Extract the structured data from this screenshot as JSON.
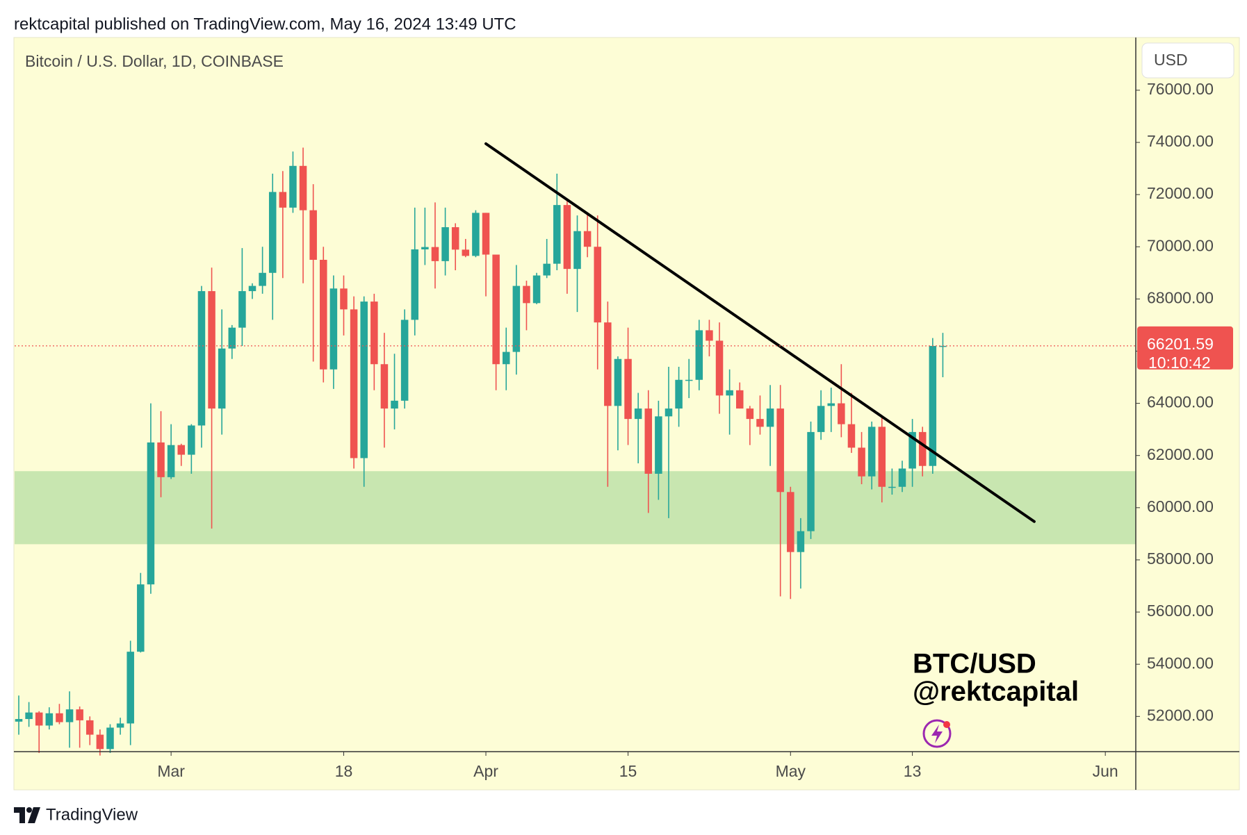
{
  "header": "rektcapital published on TradingView.com, May 16, 2024 13:49 UTC",
  "footer": "TradingView",
  "chart_data": {
    "type": "candlestick",
    "title": "Bitcoin / U.S. Dollar, 1D, COINBASE",
    "currency": "USD",
    "countdown": "10:10:42",
    "annotations": [
      "BTC/USD",
      "@rektcapital"
    ],
    "up_color": "#26a69a",
    "down_color": "#ef5350",
    "zone": {
      "ylim": [
        58600,
        61400
      ],
      "color": "#c8e6b0"
    },
    "trendline": {
      "x": [
        "2024-04-01",
        "2024-05-25"
      ],
      "y": [
        73950,
        59470
      ],
      "color": "#000000"
    },
    "xlim": [
      "2024-02-15",
      "2024-06-04"
    ],
    "xticks": [
      {
        "value": "2024-03-01",
        "label": "Mar"
      },
      {
        "value": "2024-03-18",
        "label": "18"
      },
      {
        "value": "2024-04-01",
        "label": "Apr"
      },
      {
        "value": "2024-04-15",
        "label": "15"
      },
      {
        "value": "2024-05-01",
        "label": "May"
      },
      {
        "value": "2024-05-13",
        "label": "13"
      },
      {
        "value": "2024-06-01",
        "label": "Jun"
      }
    ],
    "ylim": [
      50650,
      78020
    ],
    "yticks": [
      {
        "value": 52000,
        "label": "52000.00"
      },
      {
        "value": 54000,
        "label": "54000.00"
      },
      {
        "value": 56000,
        "label": "56000.00"
      },
      {
        "value": 58000,
        "label": "58000.00"
      },
      {
        "value": 60000,
        "label": "60000.00"
      },
      {
        "value": 62000,
        "label": "62000.00"
      },
      {
        "value": 64000,
        "label": "64000.00"
      },
      {
        "value": 66000,
        "label": "66000.00"
      },
      {
        "value": 68000,
        "label": "68000.00"
      },
      {
        "value": 70000,
        "label": "70000.00"
      },
      {
        "value": 72000,
        "label": "72000.00"
      },
      {
        "value": 74000,
        "label": "74000.00"
      },
      {
        "value": 76000,
        "label": "76000.00"
      }
    ],
    "x": [
      "2024-02-15",
      "2024-02-16",
      "2024-02-17",
      "2024-02-18",
      "2024-02-19",
      "2024-02-20",
      "2024-02-21",
      "2024-02-22",
      "2024-02-23",
      "2024-02-24",
      "2024-02-25",
      "2024-02-26",
      "2024-02-27",
      "2024-02-28",
      "2024-02-29",
      "2024-03-01",
      "2024-03-02",
      "2024-03-03",
      "2024-03-04",
      "2024-03-05",
      "2024-03-06",
      "2024-03-07",
      "2024-03-08",
      "2024-03-09",
      "2024-03-10",
      "2024-03-11",
      "2024-03-12",
      "2024-03-13",
      "2024-03-14",
      "2024-03-15",
      "2024-03-16",
      "2024-03-17",
      "2024-03-18",
      "2024-03-19",
      "2024-03-20",
      "2024-03-21",
      "2024-03-22",
      "2024-03-23",
      "2024-03-24",
      "2024-03-25",
      "2024-03-26",
      "2024-03-27",
      "2024-03-28",
      "2024-03-29",
      "2024-03-30",
      "2024-03-31",
      "2024-04-01",
      "2024-04-02",
      "2024-04-03",
      "2024-04-04",
      "2024-04-05",
      "2024-04-06",
      "2024-04-07",
      "2024-04-08",
      "2024-04-09",
      "2024-04-10",
      "2024-04-11",
      "2024-04-12",
      "2024-04-13",
      "2024-04-14",
      "2024-04-15",
      "2024-04-16",
      "2024-04-17",
      "2024-04-18",
      "2024-04-19",
      "2024-04-20",
      "2024-04-21",
      "2024-04-22",
      "2024-04-23",
      "2024-04-24",
      "2024-04-25",
      "2024-04-26",
      "2024-04-27",
      "2024-04-28",
      "2024-04-29",
      "2024-04-30",
      "2024-05-01",
      "2024-05-02",
      "2024-05-03",
      "2024-05-04",
      "2024-05-05",
      "2024-05-06",
      "2024-05-07",
      "2024-05-08",
      "2024-05-09",
      "2024-05-10",
      "2024-05-11",
      "2024-05-12",
      "2024-05-13",
      "2024-05-14",
      "2024-05-15",
      "2024-05-16"
    ],
    "open": [
      51800,
      51900,
      52150,
      51650,
      52120,
      51780,
      52270,
      51850,
      51300,
      50750,
      51570,
      51730,
      54480,
      57060,
      62500,
      61170,
      62400,
      62030,
      63150,
      68300,
      63800,
      66100,
      66900,
      68300,
      68500,
      69000,
      72100,
      71500,
      73100,
      71400,
      69500,
      65300,
      68400,
      67600,
      61900,
      67900,
      65500,
      63800,
      64100,
      67200,
      69900,
      69990,
      69450,
      70750,
      69890,
      69650,
      71300,
      69700,
      65500,
      65970,
      68500,
      67840,
      68900,
      69350,
      71600,
      69150,
      70600,
      70000,
      67100,
      63900,
      65700,
      63400,
      63800,
      61300,
      63500,
      63800,
      64900,
      64900,
      66800,
      66400,
      64300,
      64500,
      63800,
      63400,
      63100,
      63800,
      60600,
      58300,
      59100,
      62900,
      63900,
      64000,
      63200,
      62300,
      61200,
      63100,
      60800,
      60800,
      61500,
      62900,
      61600,
      66200
    ],
    "high": [
      52800,
      52550,
      52200,
      52350,
      52480,
      52960,
      52380,
      52000,
      51500,
      51700,
      51950,
      54900,
      57500,
      64000,
      63700,
      63200,
      62450,
      63200,
      68500,
      69200,
      67600,
      67000,
      69950,
      68600,
      70000,
      72800,
      72900,
      73650,
      73800,
      72400,
      70000,
      68900,
      68900,
      68100,
      68100,
      68200,
      66700,
      65900,
      67600,
      71500,
      71500,
      71700,
      71500,
      70900,
      70300,
      71400,
      71300,
      69700,
      66900,
      69300,
      68700,
      69000,
      70300,
      72800,
      71750,
      71200,
      71300,
      71200,
      67900,
      65800,
      66900,
      64400,
      64500,
      64100,
      65400,
      65400,
      65700,
      67200,
      67200,
      67100,
      65300,
      64800,
      63900,
      64300,
      64700,
      64700,
      60800,
      59600,
      63300,
      64500,
      64600,
      65500,
      64400,
      62900,
      63300,
      63500,
      61500,
      61800,
      63400,
      63100,
      66500,
      66700
    ],
    "low": [
      51300,
      51600,
      50600,
      51500,
      51700,
      50800,
      50800,
      50900,
      50500,
      50600,
      51300,
      50900,
      54450,
      56700,
      60400,
      61100,
      61600,
      61300,
      62300,
      59200,
      62800,
      65700,
      66200,
      68000,
      68200,
      67200,
      68800,
      71300,
      68600,
      65600,
      64800,
      64550,
      66600,
      61500,
      60800,
      64500,
      62300,
      63000,
      63800,
      66600,
      69300,
      68400,
      68900,
      69100,
      69600,
      69600,
      68100,
      64500,
      64500,
      65100,
      66800,
      67800,
      68800,
      69100,
      68200,
      67500,
      69600,
      65300,
      60800,
      62200,
      62400,
      61700,
      59800,
      60300,
      59600,
      63100,
      64200,
      64500,
      65800,
      63600,
      62800,
      63800,
      62400,
      62800,
      61600,
      56600,
      56500,
      56900,
      58800,
      62600,
      62900,
      62700,
      62100,
      60900,
      60700,
      60200,
      60500,
      60600,
      60800,
      61200,
      61300,
      65000
    ],
    "close": [
      51900,
      52150,
      51650,
      52120,
      51780,
      52270,
      51850,
      51300,
      50750,
      51570,
      51730,
      54480,
      57060,
      62500,
      61170,
      62400,
      62030,
      63150,
      68300,
      63800,
      66100,
      66900,
      68300,
      68500,
      69000,
      72100,
      71500,
      73100,
      71400,
      69500,
      65300,
      68400,
      67600,
      61900,
      67900,
      65500,
      63800,
      64100,
      67200,
      69900,
      69990,
      69450,
      70750,
      69890,
      69650,
      71300,
      69700,
      65500,
      65970,
      68500,
      67840,
      68900,
      69350,
      71600,
      69150,
      70600,
      70000,
      67100,
      63900,
      65700,
      63400,
      63800,
      61300,
      63500,
      63800,
      64900,
      64900,
      66800,
      66400,
      64300,
      64500,
      63800,
      63400,
      63100,
      63800,
      60600,
      58300,
      59100,
      62900,
      63900,
      64000,
      63200,
      62300,
      61200,
      63100,
      60800,
      60800,
      61500,
      62900,
      61600,
      66200,
      66201.59
    ]
  }
}
